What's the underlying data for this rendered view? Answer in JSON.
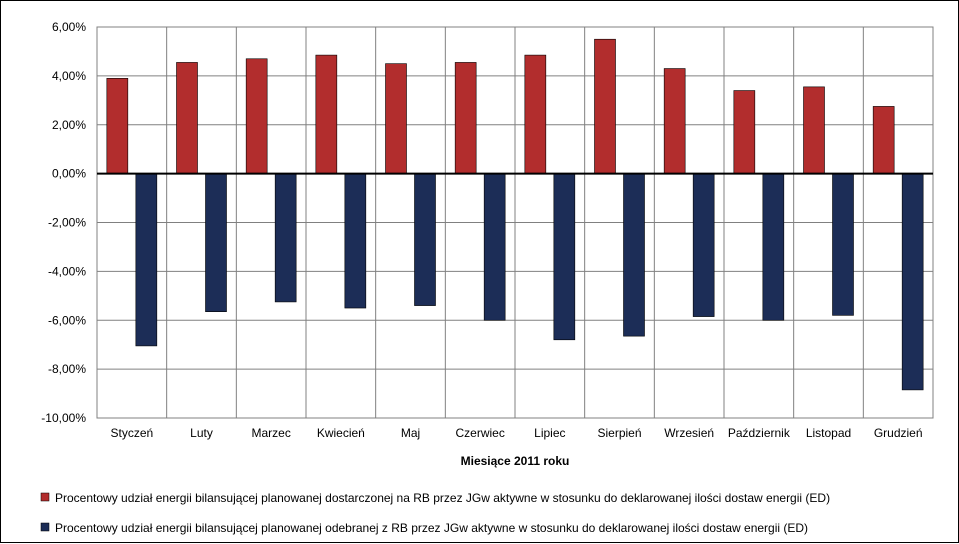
{
  "chart_data": {
    "type": "bar",
    "title": "",
    "xlabel": "Miesiące 2011  roku",
    "ylabel": "",
    "ylim": [
      -10,
      6
    ],
    "ytick_step": 2,
    "ytick_labels": [
      "6,00%",
      "4,00%",
      "2,00%",
      "0,00%",
      "-2,00%",
      "-4,00%",
      "-6,00%",
      "-8,00%",
      "-10,00%"
    ],
    "grid": true,
    "legend_position": "bottom",
    "categories": [
      "Styczeń",
      "Luty",
      "Marzec",
      "Kwiecień",
      "Maj",
      "Czerwiec",
      "Lipiec",
      "Sierpień",
      "Wrzesień",
      "Październik",
      "Listopad",
      "Grudzień"
    ],
    "series": [
      {
        "name": "Procentowy udział energii bilansującej planowanej dostarczonej na RB przez JGw aktywne w stosunku do deklarowanej ilości dostaw energii (ED)",
        "color": "#b22d2d",
        "values": [
          3.9,
          4.55,
          4.7,
          4.85,
          4.5,
          4.55,
          4.85,
          5.5,
          4.3,
          3.4,
          3.55,
          2.75
        ]
      },
      {
        "name": "Procentowy udział energii bilansującej planowanej odebranej z RB przez JGw aktywne w stosunku do deklarowanej ilości dostaw energii (ED)",
        "color": "#1c2d57",
        "values": [
          -7.05,
          -5.65,
          -5.25,
          -5.5,
          -5.4,
          -6.0,
          -6.8,
          -6.65,
          -5.85,
          -6.0,
          -5.8,
          -8.85
        ]
      }
    ]
  }
}
